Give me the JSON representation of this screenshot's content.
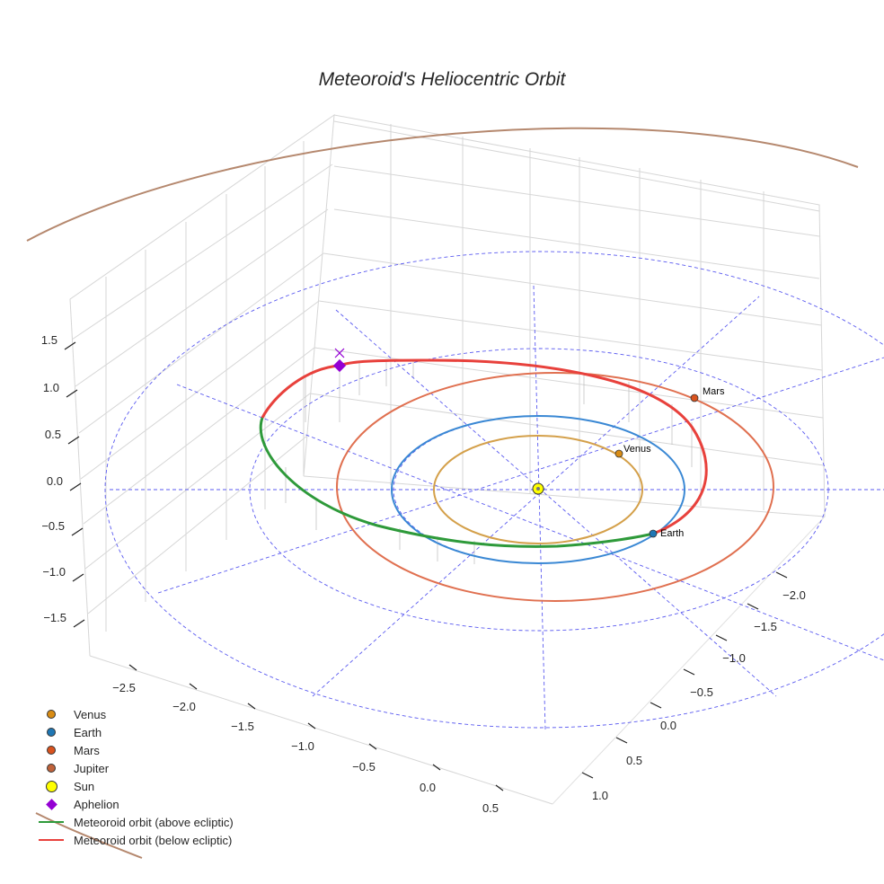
{
  "chart_data": {
    "type": "3d-line",
    "title": "Meteoroid's Heliocentric Orbit",
    "x_ticks": [
      "−2.5",
      "−2.0",
      "−1.5",
      "−1.0",
      "−0.5",
      "0.0",
      "0.5"
    ],
    "y_ticks": [
      "−2.0",
      "−1.5",
      "−1.0",
      "−0.5",
      "0.0",
      "0.5",
      "1.0"
    ],
    "z_ticks": [
      "1.5",
      "1.0",
      "0.5",
      "0.0",
      "−0.5",
      "−1.0",
      "−1.5"
    ],
    "planets": [
      {
        "name": "Venus",
        "orbit_radius_au": 0.72,
        "color": "#d4a04a",
        "marker_color": "#d98c14"
      },
      {
        "name": "Earth",
        "orbit_radius_au": 1.0,
        "color": "#3a88d4",
        "marker_color": "#1f77b4"
      },
      {
        "name": "Mars",
        "orbit_radius_au": 1.52,
        "color": "#e07050",
        "marker_color": "#d9531e"
      },
      {
        "name": "Jupiter",
        "orbit_radius_au": 5.2,
        "color": "#b5886e",
        "marker_color": "#c0623a"
      }
    ],
    "meteoroid": {
      "perihelion_au": 0.95,
      "aphelion_au": 2.55,
      "segments": [
        "above ecliptic",
        "below ecliptic"
      ],
      "colors": {
        "above": "#2e9a3a",
        "below": "#e8413c"
      }
    },
    "reference_circles_au": [
      1.0,
      2.0,
      3.0
    ],
    "labels": {
      "venus": "Venus",
      "earth": "Earth",
      "mars": "Mars"
    }
  },
  "legend": [
    {
      "label": "Venus",
      "symbol": "dot",
      "color": "#d98c14"
    },
    {
      "label": "Earth",
      "symbol": "dot",
      "color": "#1f77b4"
    },
    {
      "label": "Mars",
      "symbol": "dot",
      "color": "#d9531e"
    },
    {
      "label": "Jupiter",
      "symbol": "dot",
      "color": "#c0623a"
    },
    {
      "label": "Sun",
      "symbol": "sun",
      "color": "#ffff00"
    },
    {
      "label": "Aphelion",
      "symbol": "diamond",
      "color": "#9400d3"
    },
    {
      "label": "Meteoroid orbit (above ecliptic)",
      "symbol": "line",
      "color": "#2e9a3a"
    },
    {
      "label": "Meteoroid orbit (below ecliptic)",
      "symbol": "line",
      "color": "#e8413c"
    }
  ]
}
